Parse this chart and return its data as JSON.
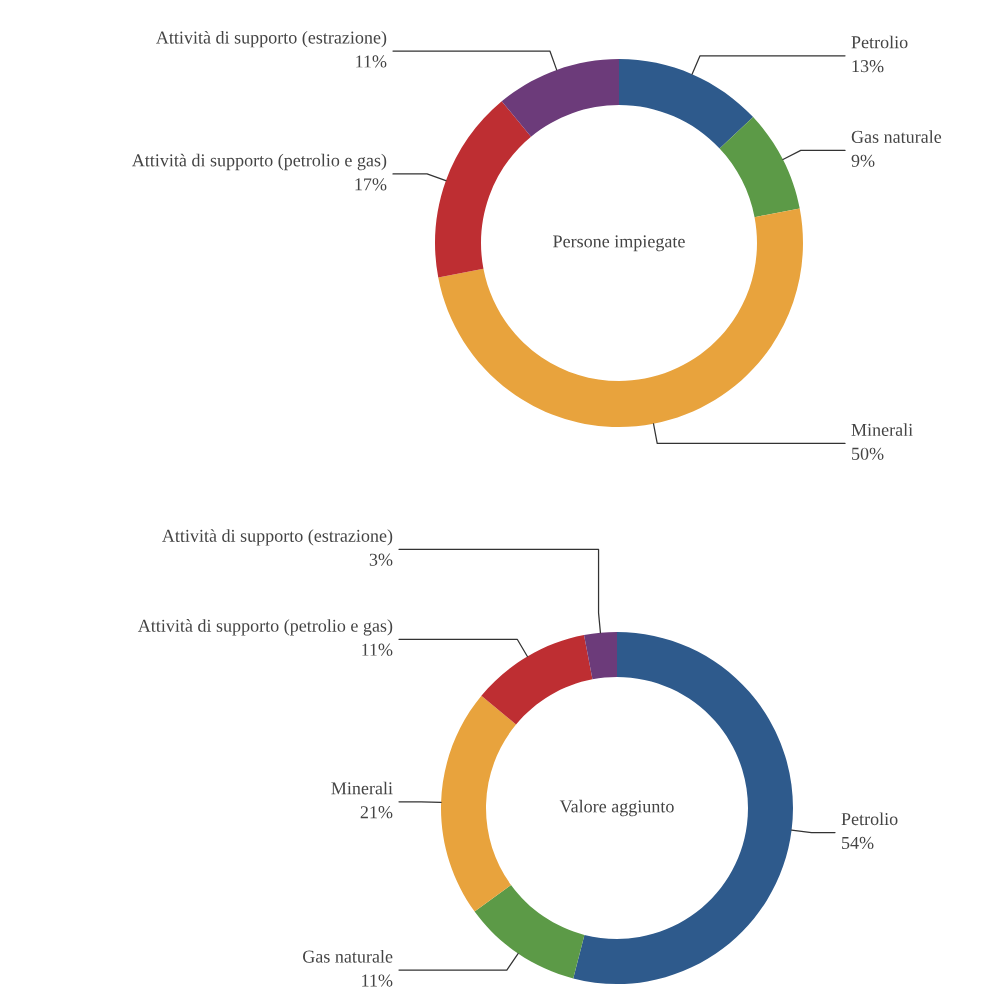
{
  "chart_data": [
    {
      "type": "donut",
      "title": "Persone impiegate",
      "categories": [
        "Petrolio",
        "Gas naturale",
        "Minerali",
        "Attività di supporto (petrolio e gas)",
        "Attività di supporto (estrazione)"
      ],
      "values": [
        13,
        9,
        50,
        17,
        11
      ],
      "value_labels": [
        "13%",
        "9%",
        "50%",
        "17%",
        "11%"
      ],
      "colors": [
        "#2e5a8c",
        "#5c9a47",
        "#e8a33d",
        "#be2e32",
        "#6c3b7a"
      ]
    },
    {
      "type": "donut",
      "title": "Valore aggiunto",
      "categories": [
        "Petrolio",
        "Gas naturale",
        "Minerali",
        "Attività di supporto (petrolio e gas)",
        "Attività di supporto (estrazione)"
      ],
      "values": [
        54,
        11,
        21,
        11,
        3
      ],
      "value_labels": [
        "54%",
        "11%",
        "21%",
        "11%",
        "3%"
      ],
      "colors": [
        "#2e5a8c",
        "#5c9a47",
        "#e8a33d",
        "#be2e32",
        "#6c3b7a"
      ]
    }
  ]
}
